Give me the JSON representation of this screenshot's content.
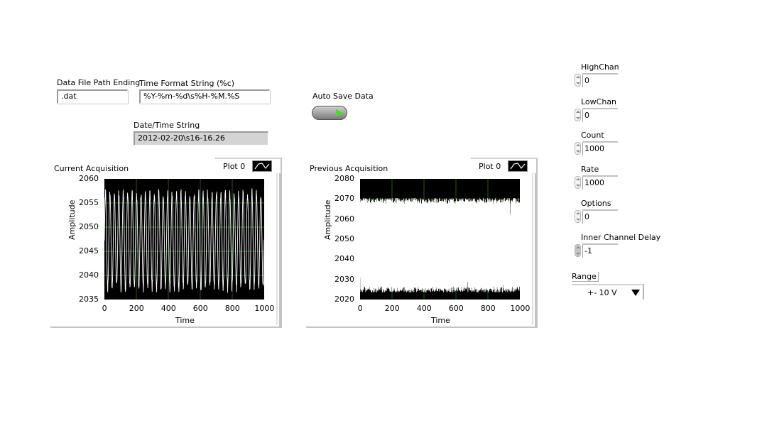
{
  "data_file_path_ending": {
    "label": "Data File Path Ending",
    "value": ".dat"
  },
  "time_format_string": {
    "label": "Time Format String (%c)",
    "value": "%Y-%m-%d\\s%H-%M.%S"
  },
  "date_time_string": {
    "label": "Date/Time String",
    "value": "2012-02-20\\s16-16.26"
  },
  "auto_save": {
    "label": "Auto Save Data",
    "state": "on"
  },
  "params": [
    {
      "label": "HighChan",
      "value": "0"
    },
    {
      "label": "LowChan",
      "value": "0"
    },
    {
      "label": "Count",
      "value": "1000"
    },
    {
      "label": "Rate",
      "value": "1000"
    },
    {
      "label": "Options",
      "value": "0"
    },
    {
      "label": "Inner Channel Delay",
      "value": "-1"
    }
  ],
  "range": {
    "label": "Range",
    "value": "+- 10 V"
  },
  "graphs": [
    {
      "title": "Current Acquisition",
      "legend": "Plot 0",
      "xlabel": "Time",
      "ylabel": "Amplitude",
      "xticks": [
        "0",
        "200",
        "400",
        "600",
        "800",
        "1000"
      ],
      "yticks": [
        "2060",
        "2055",
        "2050",
        "2045",
        "2040",
        "2035"
      ]
    },
    {
      "title": "Previous Acquisition",
      "legend": "Plot 0",
      "xlabel": "Time",
      "ylabel": "Amplitude",
      "xticks": [
        "0",
        "200",
        "400",
        "600",
        "800",
        "1000"
      ],
      "yticks": [
        "2080",
        "2070",
        "2060",
        "2050",
        "2040",
        "2030",
        "2020"
      ]
    }
  ],
  "chart_data": [
    {
      "type": "line",
      "title": "Current Acquisition",
      "xlabel": "Time",
      "ylabel": "Amplitude",
      "xlim": [
        0,
        1000
      ],
      "ylim": [
        2035,
        2060
      ],
      "grid": true,
      "legend": [
        "Plot 0"
      ],
      "series": [
        {
          "name": "Plot 0",
          "color": "#ffffff",
          "signal": "oscillation",
          "x": [
            0,
            100,
            200,
            300,
            400,
            500,
            600,
            700,
            800,
            900,
            1000
          ],
          "envelope_min": [
            2037.5,
            2037.5,
            2037.5,
            2037.5,
            2037.5,
            2037.5,
            2037.5,
            2037.5,
            2037.5,
            2037.5,
            2037.5
          ],
          "envelope_max": [
            2057,
            2057,
            2057,
            2057,
            2057,
            2057,
            2057,
            2057,
            2057,
            2057,
            2057
          ],
          "cycles": 36
        }
      ]
    },
    {
      "type": "line",
      "title": "Previous Acquisition",
      "xlabel": "Time",
      "ylabel": "Amplitude",
      "xlim": [
        0,
        1000
      ],
      "ylim": [
        2020,
        2080
      ],
      "grid": true,
      "legend": [
        "Plot 0"
      ],
      "series": [
        {
          "name": "Plot 0",
          "color": "#ffffff",
          "signal": "square",
          "x": [
            0,
            100,
            200,
            300,
            400,
            500,
            600,
            700,
            800,
            900,
            1000
          ],
          "envelope_min": [
            2025,
            2025,
            2025,
            2025,
            2025,
            2025,
            2025,
            2025,
            2025,
            2025,
            2025
          ],
          "envelope_max": [
            2069,
            2069,
            2069,
            2069,
            2069,
            2069,
            2069,
            2069,
            2069,
            2069,
            2069
          ],
          "cycles": 500
        }
      ]
    }
  ]
}
